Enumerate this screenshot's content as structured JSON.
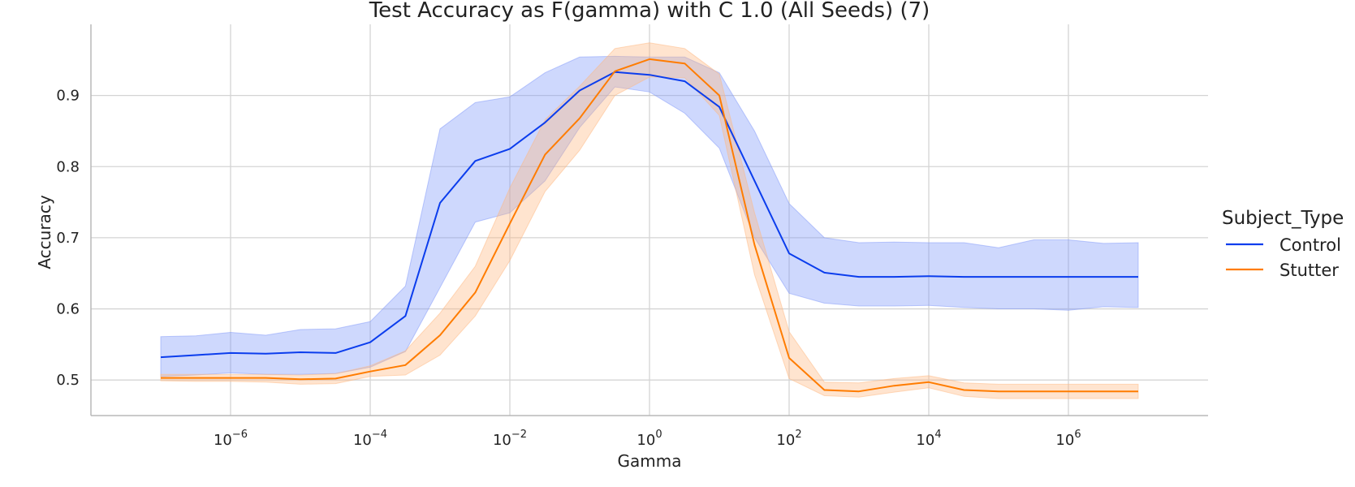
{
  "chart_data": {
    "type": "line",
    "title": "Test Accuracy as F(gamma) with C 1.0 (All Seeds) (7)",
    "xlabel": "Gamma",
    "ylabel": "Accuracy",
    "xscale": "log",
    "xlim": [
      1e-08,
      100000000.0
    ],
    "ylim": [
      0.45,
      1.0
    ],
    "x_ticks": [
      {
        "value": 1e-06,
        "label": "10",
        "exp": "−6"
      },
      {
        "value": 0.0001,
        "label": "10",
        "exp": "−4"
      },
      {
        "value": 0.01,
        "label": "10",
        "exp": "−2"
      },
      {
        "value": 1,
        "label": "10",
        "exp": "0"
      },
      {
        "value": 100,
        "label": "10",
        "exp": "2"
      },
      {
        "value": 10000,
        "label": "10",
        "exp": "4"
      },
      {
        "value": 1000000,
        "label": "10",
        "exp": "6"
      }
    ],
    "y_ticks": [
      {
        "value": 0.5,
        "label": "0.5"
      },
      {
        "value": 0.6,
        "label": "0.6"
      },
      {
        "value": 0.7,
        "label": "0.7"
      },
      {
        "value": 0.8,
        "label": "0.8"
      },
      {
        "value": 0.9,
        "label": "0.9"
      }
    ],
    "grid": true,
    "legend": {
      "title": "Subject_Type",
      "placement": "right"
    },
    "x": [
      1e-07,
      3.2e-07,
      1e-06,
      3.2e-06,
      1e-05,
      3.2e-05,
      0.0001,
      0.00032,
      0.001,
      0.0032,
      0.01,
      0.032,
      0.1,
      0.32,
      1,
      3.2,
      10,
      32,
      100,
      320,
      1000,
      3200,
      10000,
      32000,
      100000,
      320000,
      1000000,
      3200000,
      10000000
    ],
    "series": [
      {
        "name": "Control",
        "color": "#0b3ded",
        "band_color": "#7f98f9",
        "values": [
          0.532,
          0.535,
          0.538,
          0.537,
          0.539,
          0.538,
          0.553,
          0.59,
          0.749,
          0.808,
          0.825,
          0.862,
          0.907,
          0.933,
          0.929,
          0.92,
          0.884,
          0.78,
          0.678,
          0.651,
          0.645,
          0.645,
          0.646,
          0.645,
          0.645,
          0.645,
          0.645,
          0.645,
          0.645
        ],
        "lower": [
          0.505,
          0.507,
          0.51,
          0.508,
          0.508,
          0.509,
          0.518,
          0.54,
          0.63,
          0.722,
          0.735,
          0.78,
          0.855,
          0.912,
          0.905,
          0.875,
          0.826,
          0.7,
          0.622,
          0.608,
          0.604,
          0.604,
          0.605,
          0.602,
          0.6,
          0.6,
          0.598,
          0.603,
          0.602
        ],
        "upper": [
          0.561,
          0.562,
          0.567,
          0.563,
          0.571,
          0.572,
          0.582,
          0.632,
          0.853,
          0.89,
          0.898,
          0.932,
          0.954,
          0.955,
          0.954,
          0.954,
          0.932,
          0.85,
          0.748,
          0.7,
          0.693,
          0.694,
          0.693,
          0.693,
          0.686,
          0.697,
          0.697,
          0.692,
          0.693
        ]
      },
      {
        "name": "Stutter",
        "color": "#ff7c00",
        "band_color": "#ffb780",
        "values": [
          0.503,
          0.503,
          0.503,
          0.503,
          0.501,
          0.502,
          0.512,
          0.521,
          0.563,
          0.623,
          0.72,
          0.817,
          0.868,
          0.934,
          0.951,
          0.945,
          0.9,
          0.69,
          0.531,
          0.486,
          0.484,
          0.492,
          0.497,
          0.486,
          0.484,
          0.484,
          0.484,
          0.484,
          0.484
        ],
        "lower": [
          0.499,
          0.498,
          0.498,
          0.497,
          0.494,
          0.495,
          0.505,
          0.507,
          0.535,
          0.59,
          0.668,
          0.765,
          0.823,
          0.9,
          0.926,
          0.925,
          0.872,
          0.648,
          0.502,
          0.478,
          0.476,
          0.483,
          0.489,
          0.477,
          0.474,
          0.474,
          0.474,
          0.474,
          0.474
        ],
        "upper": [
          0.508,
          0.508,
          0.508,
          0.508,
          0.507,
          0.509,
          0.52,
          0.541,
          0.594,
          0.66,
          0.77,
          0.866,
          0.913,
          0.966,
          0.974,
          0.966,
          0.93,
          0.735,
          0.568,
          0.497,
          0.496,
          0.502,
          0.506,
          0.496,
          0.494,
          0.494,
          0.494,
          0.494,
          0.494
        ]
      }
    ]
  }
}
